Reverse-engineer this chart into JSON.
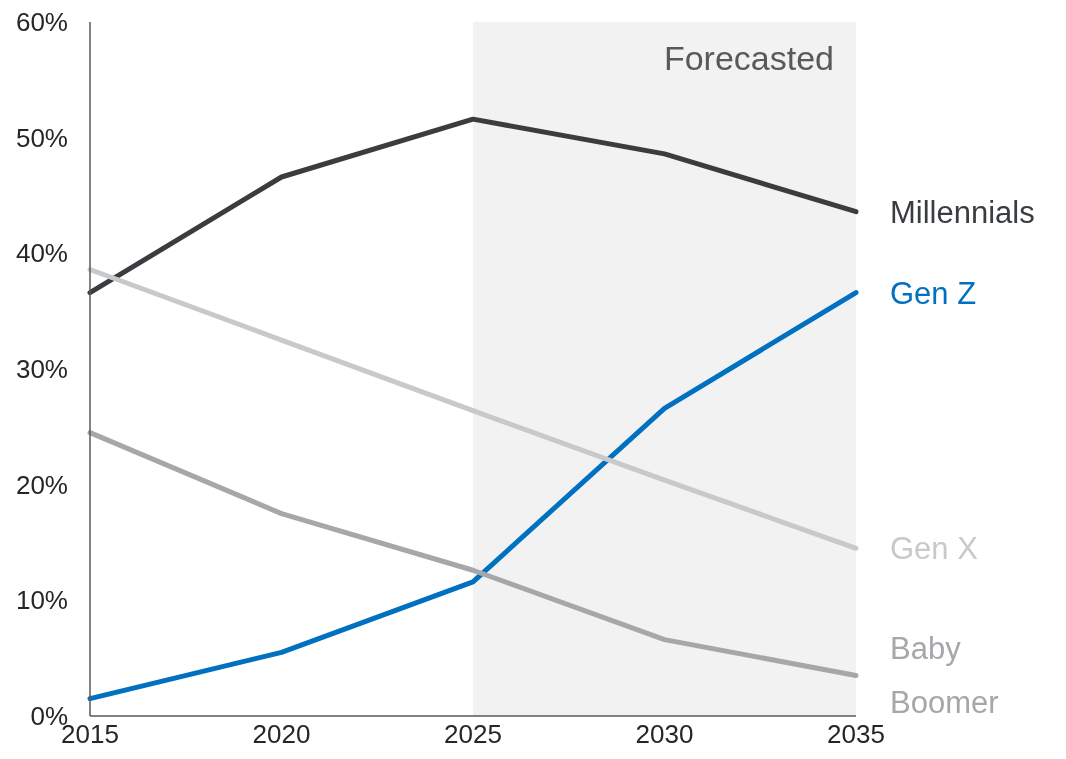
{
  "chart_data": {
    "type": "line",
    "x": [
      2015,
      2020,
      2025,
      2030,
      2035
    ],
    "series": [
      {
        "name": "Millennials",
        "color": "#3a3d40",
        "values": [
          36.6,
          46.6,
          51.6,
          48.6,
          43.6
        ]
      },
      {
        "name": "Gen Z",
        "color": "#0070c0",
        "values": [
          1.5,
          5.5,
          11.6,
          26.6,
          36.6
        ]
      },
      {
        "name": "Gen X",
        "color": "#c8c9cb",
        "values": [
          38.6,
          32.5,
          26.4,
          20.4,
          14.5
        ]
      },
      {
        "name": "Baby Boomer",
        "color": "#a5a7aa",
        "values": [
          24.5,
          17.5,
          12.6,
          6.6,
          3.5
        ]
      }
    ],
    "xlim": [
      2015,
      2035
    ],
    "xticks": [
      2015,
      2020,
      2025,
      2030,
      2035
    ],
    "ylim": [
      0,
      60
    ],
    "yticks": [
      {
        "value": 0,
        "label": "0%"
      },
      {
        "value": 10,
        "label": "10%"
      },
      {
        "value": 20,
        "label": "20%"
      },
      {
        "value": 30,
        "label": "30%"
      },
      {
        "value": 40,
        "label": "40%"
      },
      {
        "value": 50,
        "label": "50%"
      },
      {
        "value": 60,
        "label": "60%"
      }
    ],
    "bands": [
      {
        "axis": "x",
        "from": 2025,
        "to": 2035,
        "label": "Forecasted",
        "color": "#f2f2f2"
      }
    ],
    "grid": false,
    "legend": false,
    "marker": "none",
    "line_style": "solid"
  }
}
